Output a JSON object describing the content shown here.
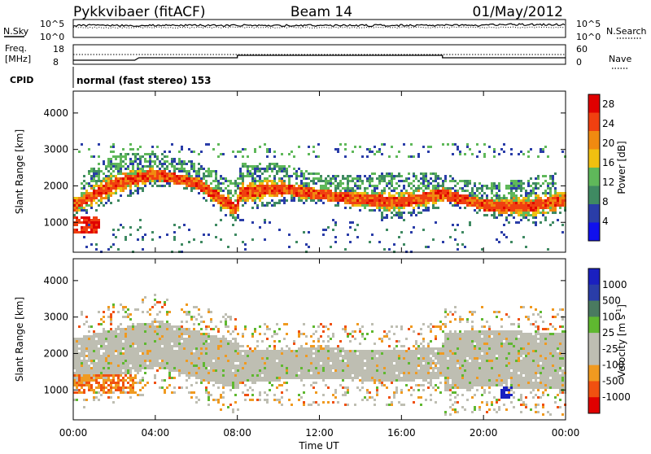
{
  "header": {
    "station": "Pykkvibaer (fitACF)",
    "beam": "Beam 14",
    "date": "01/May/2012"
  },
  "nsky_panel": {
    "left_label": "N.Sky",
    "right_label": "N.Search",
    "left_ticks": [
      "10^5",
      "10^0"
    ],
    "right_ticks": [
      "10^5",
      "10^0"
    ]
  },
  "freq_panel": {
    "left_label_line1": "Freq.",
    "left_label_line2": "[MHz]",
    "right_label": "Nave",
    "left_ticks": [
      "18",
      "8"
    ],
    "right_ticks": [
      "60",
      "0"
    ]
  },
  "cpid_panel": {
    "label": "CPID",
    "text": "normal (fast stereo) 153"
  },
  "time_axis": {
    "ticks": [
      "00:00",
      "04:00",
      "08:00",
      "12:00",
      "16:00",
      "20:00",
      "00:00"
    ],
    "label": "Time UT"
  },
  "colors": {
    "power": [
      "#1010ee",
      "#2a3da8",
      "#3f8a62",
      "#5fb85a",
      "#f0c010",
      "#f08a10",
      "#f04010",
      "#e00000"
    ],
    "velocity": [
      "#e00000",
      "#f05010",
      "#f09a20",
      "#bebeb2",
      "#bebeb2",
      "#5fb830",
      "#4a7a60",
      "#2a3da8",
      "#1a20c0"
    ]
  },
  "chart_data": [
    {
      "type": "heatmap",
      "title": "",
      "ylabel": "Slant Range [km]",
      "xlabel": "Time UT",
      "x_range": [
        "00:00",
        "24:00"
      ],
      "y_range": [
        180,
        4600
      ],
      "yticks": [
        "1000",
        "2000",
        "3000",
        "4000"
      ],
      "colorbar": {
        "label": "Power [dB]",
        "ticks": [
          "4",
          "8",
          "12",
          "16",
          "20",
          "24",
          "28"
        ],
        "range": [
          0,
          30
        ]
      },
      "series": [
        {
          "name": "",
          "values": [
            {
              "t": 0,
              "range": 1500
            },
            {
              "t": 2,
              "range": 2100
            },
            {
              "t": 4,
              "range": 2350
            },
            {
              "t": 6,
              "range": 2100
            },
            {
              "t": 7.9,
              "range": 1400
            },
            {
              "t": 8.1,
              "range": 1850
            },
            {
              "t": 10,
              "range": 1950
            },
            {
              "t": 12,
              "range": 1800
            },
            {
              "t": 14,
              "range": 1650
            },
            {
              "t": 16,
              "range": 1600
            },
            {
              "t": 18,
              "range": 1800
            },
            {
              "t": 20,
              "range": 1500
            },
            {
              "t": 22,
              "range": 1450
            },
            {
              "t": 24,
              "range": 1650
            }
          ]
        }
      ]
    },
    {
      "type": "heatmap",
      "title": "",
      "ylabel": "Slant Range [km]",
      "xlabel": "Time UT",
      "x_range": [
        "00:00",
        "24:00"
      ],
      "y_range": [
        180,
        4600
      ],
      "yticks": [
        "1000",
        "2000",
        "3000",
        "4000"
      ],
      "colorbar": {
        "label": "Velocity [m s-1]",
        "label_main": "Velocity [m s",
        "label_sup": "-1",
        "label_end": "]",
        "ticks": [
          "1000",
          "500",
          "100",
          "25",
          "-25",
          "-100",
          "-500",
          "-1000"
        ]
      },
      "series": [
        {
          "name": "",
          "values": [
            {
              "t": 0,
              "range": 1800
            },
            {
              "t": 4,
              "range": 2300
            },
            {
              "t": 8,
              "range": 1700
            },
            {
              "t": 12,
              "range": 1750
            },
            {
              "t": 16,
              "range": 1700
            },
            {
              "t": 20,
              "range": 1900
            },
            {
              "t": 24,
              "range": 1800
            }
          ]
        }
      ]
    }
  ]
}
